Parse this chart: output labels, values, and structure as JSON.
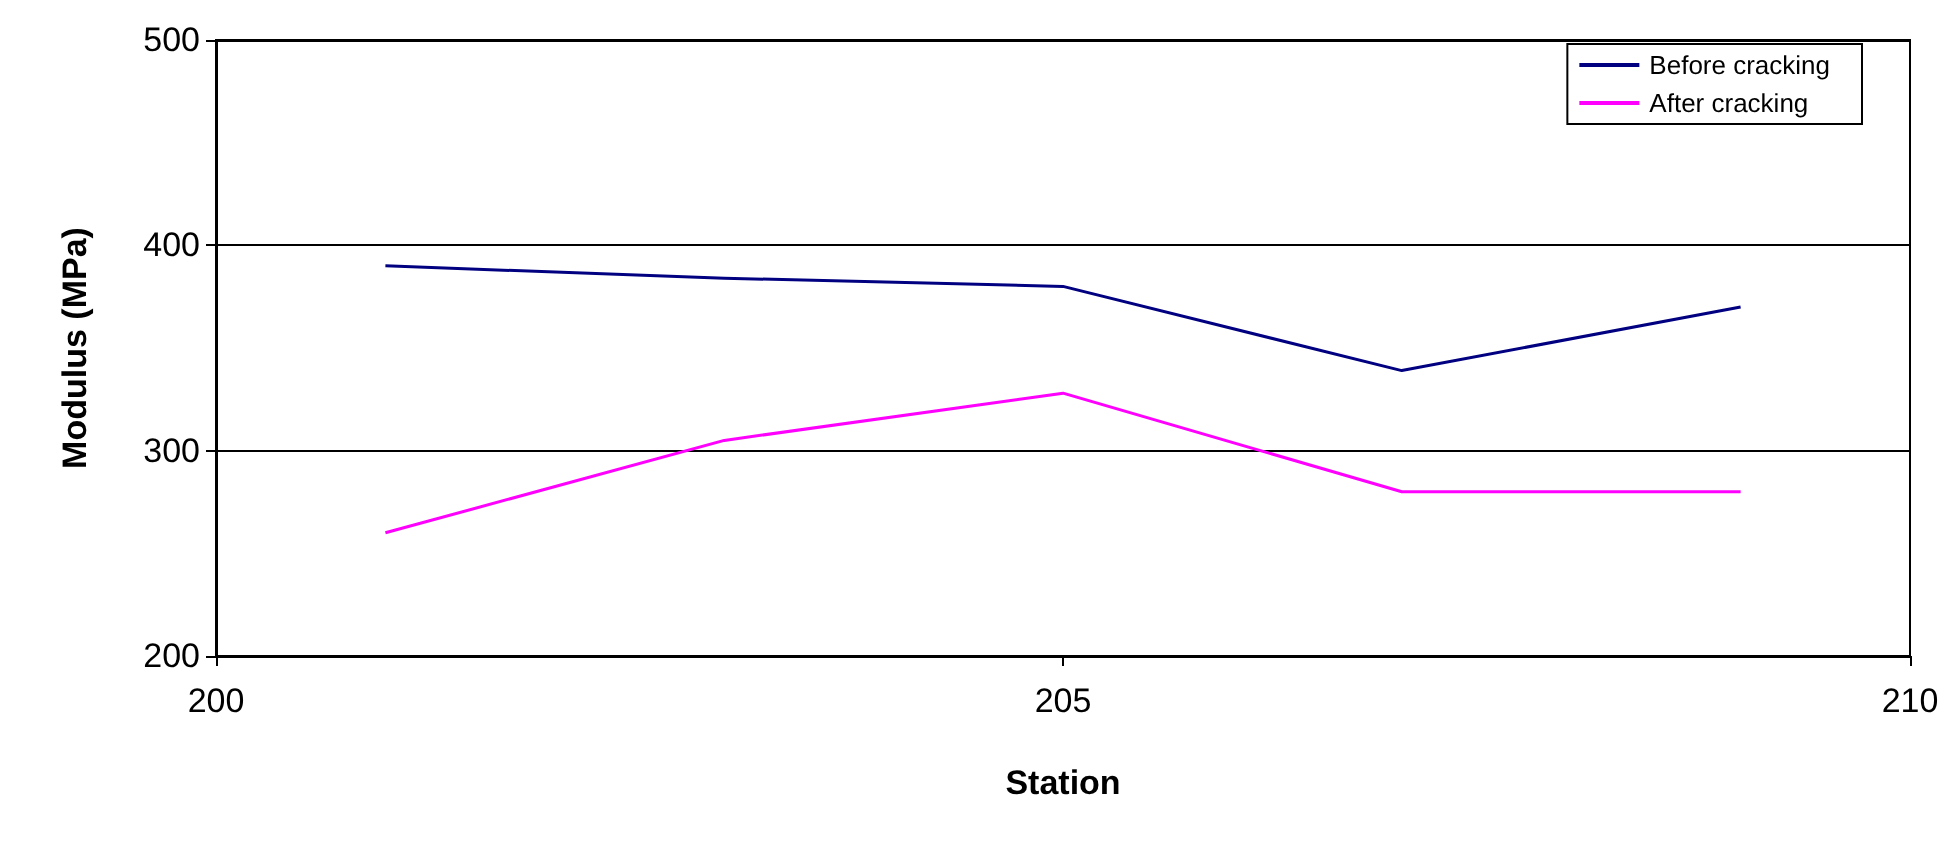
{
  "chart_data": {
    "type": "line",
    "xlabel": "Station",
    "ylabel": "Modulus (MPa)",
    "x": [
      201,
      203,
      205,
      207,
      209
    ],
    "series": [
      {
        "name": "Before cracking",
        "color": "#000080",
        "values": [
          390,
          384,
          380,
          339,
          370
        ]
      },
      {
        "name": "After cracking",
        "color": "#ff00ff",
        "values": [
          260,
          305,
          328,
          280,
          280
        ]
      }
    ],
    "xlim": [
      200,
      210
    ],
    "xticks": [
      200,
      205,
      210
    ],
    "ylim": [
      200,
      500
    ],
    "yticks": [
      200,
      300,
      400,
      500
    ],
    "grid": "y",
    "legend": "top right",
    "marker": "none",
    "line_style": "solid"
  }
}
